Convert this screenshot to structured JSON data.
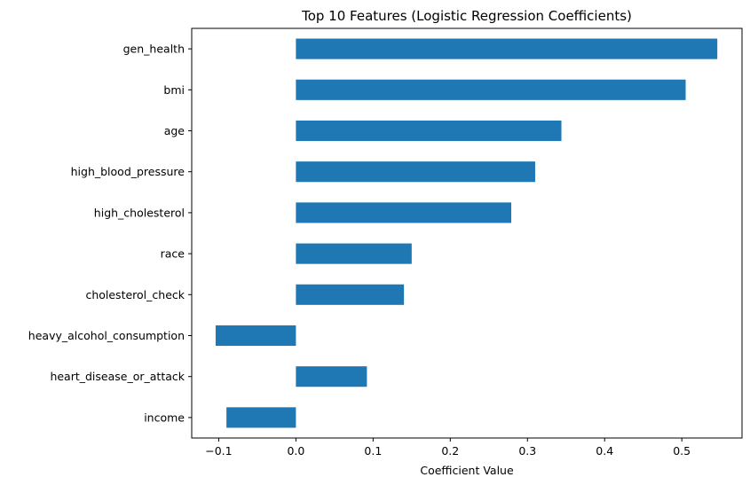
{
  "chart_data": {
    "type": "bar",
    "orientation": "horizontal",
    "title": "Top 10 Features (Logistic Regression Coefficients)",
    "xlabel": "Coefficient Value",
    "ylabel": "",
    "categories": [
      "gen_health",
      "bmi",
      "age",
      "high_blood_pressure",
      "high_cholesterol",
      "race",
      "cholesterol_check",
      "heavy_alcohol_consumption",
      "heart_disease_or_attack",
      "income"
    ],
    "values": [
      0.546,
      0.505,
      0.344,
      0.31,
      0.279,
      0.15,
      0.14,
      -0.104,
      0.092,
      -0.09
    ],
    "xlim": [
      -0.135,
      0.578
    ],
    "xticks": [
      -0.1,
      0.0,
      0.1,
      0.2,
      0.3,
      0.4,
      0.5
    ],
    "xtick_labels": [
      "−0.1",
      "0.0",
      "0.1",
      "0.2",
      "0.3",
      "0.4",
      "0.5"
    ],
    "grid": false,
    "legend": "none",
    "bar_color": "#1f77b4"
  }
}
